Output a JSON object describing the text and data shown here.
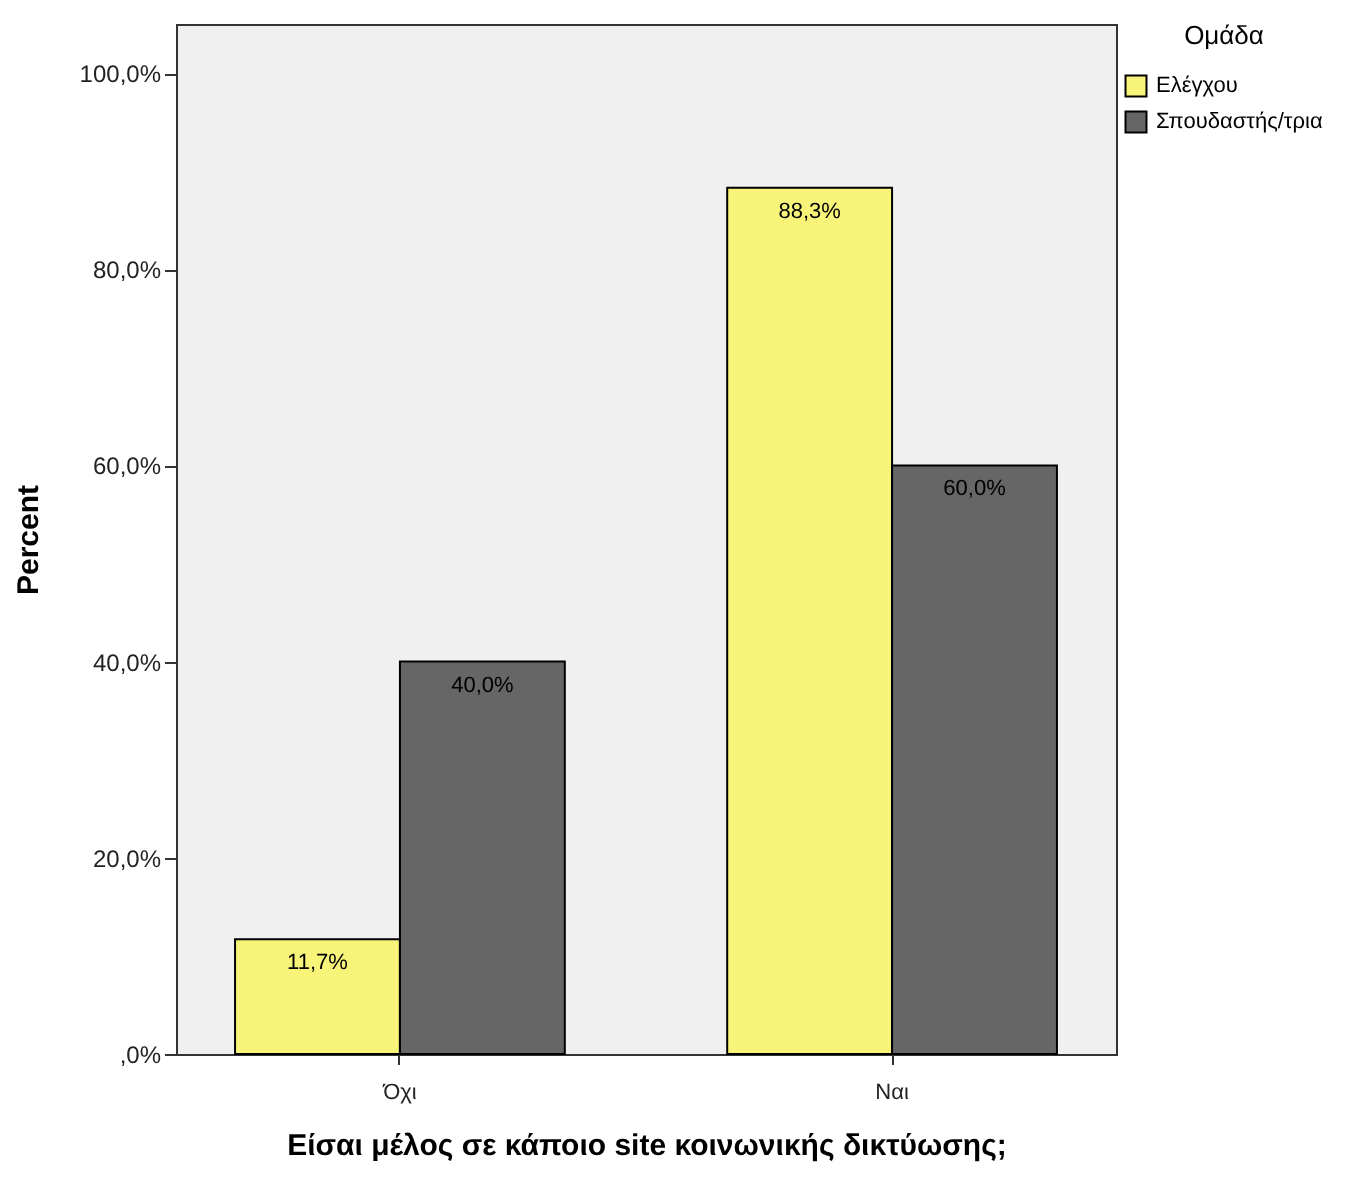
{
  "chart_data": {
    "type": "bar",
    "xlabel": "Είσαι μέλος σε κάποιο site κοινωνικής δικτύωσης;",
    "ylabel": "Percent",
    "legend_title": "Ομάδα",
    "categories": [
      "Όχι",
      "Ναι"
    ],
    "series": [
      {
        "name": "Ελέγχου",
        "color": "#f8f479",
        "values": [
          11.7,
          88.3
        ],
        "value_labels": [
          "11,7%",
          "88,3%"
        ]
      },
      {
        "name": "Σπουδαστής/τρια",
        "color": "#666666",
        "values": [
          40.0,
          60.0
        ],
        "value_labels": [
          "40,0%",
          "60,0%"
        ]
      }
    ],
    "ylim": [
      0,
      105
    ],
    "yticks": [
      {
        "value": 0,
        "label": ",0%"
      },
      {
        "value": 20,
        "label": "20,0%"
      },
      {
        "value": 40,
        "label": "40,0%"
      },
      {
        "value": 60,
        "label": "60,0%"
      },
      {
        "value": 80,
        "label": "80,0%"
      },
      {
        "value": 100,
        "label": "100,0%"
      }
    ],
    "grid": false,
    "legend": "top right"
  }
}
